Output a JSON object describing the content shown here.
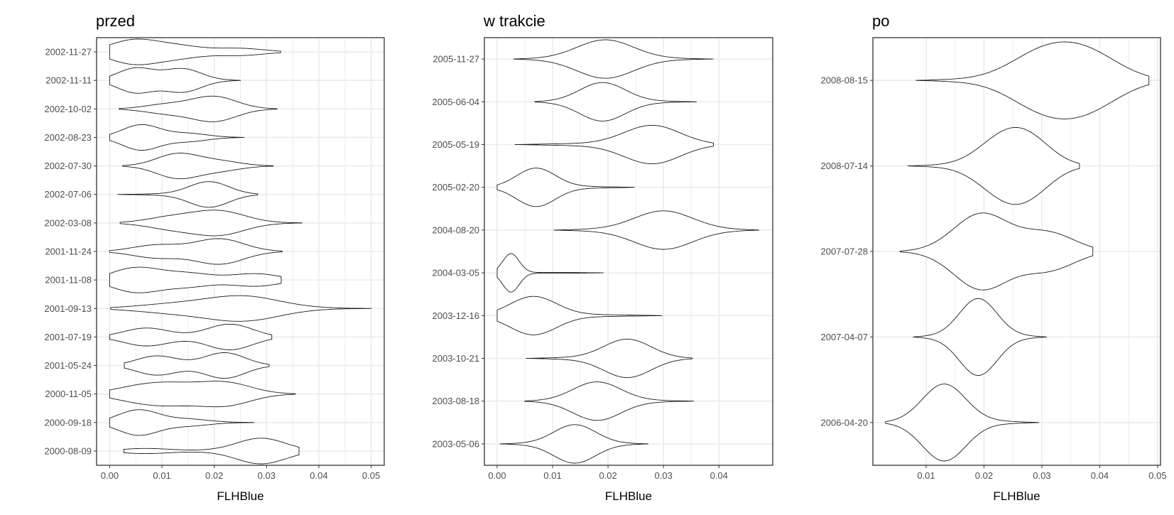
{
  "chart_data": [
    {
      "type": "violin",
      "title": "przed",
      "xlabel": "FLHBlue",
      "ylabel": "",
      "orientation": "horizontal",
      "xlim": [
        -0.0025,
        0.0525
      ],
      "xticks": [
        0.0,
        0.01,
        0.02,
        0.03,
        0.04,
        0.05
      ],
      "xtick_labels": [
        "0.00",
        "0.01",
        "0.02",
        "0.03",
        "0.04",
        "0.05"
      ],
      "categories": [
        "2000-08-09",
        "2000-09-18",
        "2000-11-05",
        "2001-05-24",
        "2001-07-19",
        "2001-09-13",
        "2001-11-08",
        "2001-11-24",
        "2002-03-08",
        "2002-07-06",
        "2002-07-30",
        "2002-08-23",
        "2002-10-02",
        "2002-11-11",
        "2002-11-27"
      ],
      "violins": [
        {
          "min": 0.0027,
          "max": 0.0362,
          "peaks": [
            [
              0.0065,
              0.15
            ],
            [
              0.029,
              0.78
            ]
          ]
        },
        {
          "min": 0.0,
          "max": 0.0277,
          "peaks": [
            [
              0.0055,
              0.85
            ],
            [
              0.015,
              0.2
            ]
          ]
        },
        {
          "min": 0.0,
          "max": 0.0355,
          "peaks": [
            [
              0.005,
              0.3
            ],
            [
              0.012,
              0.4
            ],
            [
              0.022,
              0.55
            ]
          ]
        },
        {
          "min": 0.0028,
          "max": 0.0305,
          "peaks": [
            [
              0.009,
              0.45
            ],
            [
              0.022,
              0.6
            ]
          ]
        },
        {
          "min": 0.0,
          "max": 0.031,
          "peaks": [
            [
              0.007,
              0.45
            ],
            [
              0.023,
              0.65
            ]
          ]
        },
        {
          "min": 0.0002,
          "max": 0.05,
          "peaks": [
            [
              0.012,
              0.25
            ],
            [
              0.0255,
              0.75
            ]
          ]
        },
        {
          "min": 0.0,
          "max": 0.0328,
          "peaks": [
            [
              0.005,
              0.6
            ],
            [
              0.015,
              0.3
            ],
            [
              0.028,
              0.3
            ]
          ]
        },
        {
          "min": 0.0,
          "max": 0.033,
          "peaks": [
            [
              0.009,
              0.3
            ],
            [
              0.021,
              0.6
            ]
          ]
        },
        {
          "min": 0.002,
          "max": 0.0368,
          "peaks": [
            [
              0.012,
              0.3
            ],
            [
              0.021,
              0.6
            ]
          ]
        },
        {
          "min": 0.0015,
          "max": 0.0283,
          "peaks": [
            [
              0.019,
              0.55
            ]
          ]
        },
        {
          "min": 0.0025,
          "max": 0.0313,
          "peaks": [
            [
              0.013,
              0.95
            ],
            [
              0.021,
              0.35
            ]
          ]
        },
        {
          "min": 0.0,
          "max": 0.0257,
          "peaks": [
            [
              0.006,
              0.7
            ],
            [
              0.015,
              0.2
            ]
          ]
        },
        {
          "min": 0.0018,
          "max": 0.032,
          "peaks": [
            [
              0.011,
              0.25
            ],
            [
              0.02,
              0.7
            ]
          ]
        },
        {
          "min": 0.0,
          "max": 0.025,
          "peaks": [
            [
              0.005,
              0.55
            ],
            [
              0.014,
              0.5
            ]
          ]
        },
        {
          "min": 0.0,
          "max": 0.0327,
          "peaks": [
            [
              0.0045,
              0.55
            ],
            [
              0.013,
              0.25
            ],
            [
              0.025,
              0.15
            ]
          ]
        }
      ]
    },
    {
      "type": "violin",
      "title": "w trakcie",
      "xlabel": "FLHBlue",
      "ylabel": "",
      "orientation": "horizontal",
      "xlim": [
        -0.0023,
        0.0497
      ],
      "xticks": [
        0.0,
        0.01,
        0.02,
        0.03,
        0.04
      ],
      "xtick_labels": [
        "0.00",
        "0.01",
        "0.02",
        "0.03",
        "0.04"
      ],
      "categories": [
        "2003-05-06",
        "2003-08-18",
        "2003-10-21",
        "2003-12-16",
        "2004-03-05",
        "2004-08-20",
        "2005-02-20",
        "2005-05-19",
        "2005-06-04",
        "2005-11-27"
      ],
      "violins": [
        {
          "min": 0.0005,
          "max": 0.0272,
          "peaks": [
            [
              0.014,
              0.55
            ]
          ]
        },
        {
          "min": 0.005,
          "max": 0.0355,
          "peaks": [
            [
              0.018,
              0.6
            ]
          ]
        },
        {
          "min": 0.0052,
          "max": 0.0352,
          "peaks": [
            [
              0.0235,
              0.5
            ]
          ]
        },
        {
          "min": 0.0,
          "max": 0.0298,
          "peaks": [
            [
              0.0065,
              0.6
            ]
          ]
        },
        {
          "min": 0.0,
          "max": 0.0192,
          "peaks": [
            [
              0.0025,
              1.5
            ]
          ]
        },
        {
          "min": 0.0102,
          "max": 0.0472,
          "peaks": [
            [
              0.03,
              0.4
            ]
          ]
        },
        {
          "min": 0.0,
          "max": 0.0248,
          "peaks": [
            [
              0.007,
              0.65
            ]
          ]
        },
        {
          "min": 0.0032,
          "max": 0.039,
          "peaks": [
            [
              0.028,
              0.5
            ]
          ]
        },
        {
          "min": 0.0068,
          "max": 0.036,
          "peaks": [
            [
              0.019,
              0.65
            ]
          ]
        },
        {
          "min": 0.003,
          "max": 0.039,
          "peaks": [
            [
              0.0195,
              0.6
            ]
          ]
        }
      ]
    },
    {
      "type": "violin",
      "title": "po",
      "xlabel": "FLHBlue",
      "ylabel": "",
      "orientation": "horizontal",
      "xlim": [
        0.0008,
        0.0505
      ],
      "xticks": [
        0.01,
        0.02,
        0.03,
        0.04,
        0.05
      ],
      "xtick_labels": [
        "0.01",
        "0.02",
        "0.03",
        "0.04",
        "0.05"
      ],
      "categories": [
        "2006-04-20",
        "2007-04-07",
        "2007-07-28",
        "2008-07-14",
        "2008-08-15"
      ],
      "violins": [
        {
          "min": 0.003,
          "max": 0.0295,
          "peaks": [
            [
              0.0131,
              0.68
            ]
          ]
        },
        {
          "min": 0.0078,
          "max": 0.0308,
          "peaks": [
            [
              0.019,
              0.6
            ]
          ]
        },
        {
          "min": 0.0055,
          "max": 0.0388,
          "peaks": [
            [
              0.0195,
              0.55
            ],
            [
              0.031,
              0.27
            ]
          ]
        },
        {
          "min": 0.0068,
          "max": 0.0365,
          "peaks": [
            [
              0.0225,
              0.4
            ],
            [
              0.0275,
              0.52
            ]
          ]
        },
        {
          "min": 0.0082,
          "max": 0.0485,
          "peaks": [
            [
              0.03,
              0.42
            ],
            [
              0.038,
              0.42
            ]
          ]
        }
      ]
    }
  ]
}
